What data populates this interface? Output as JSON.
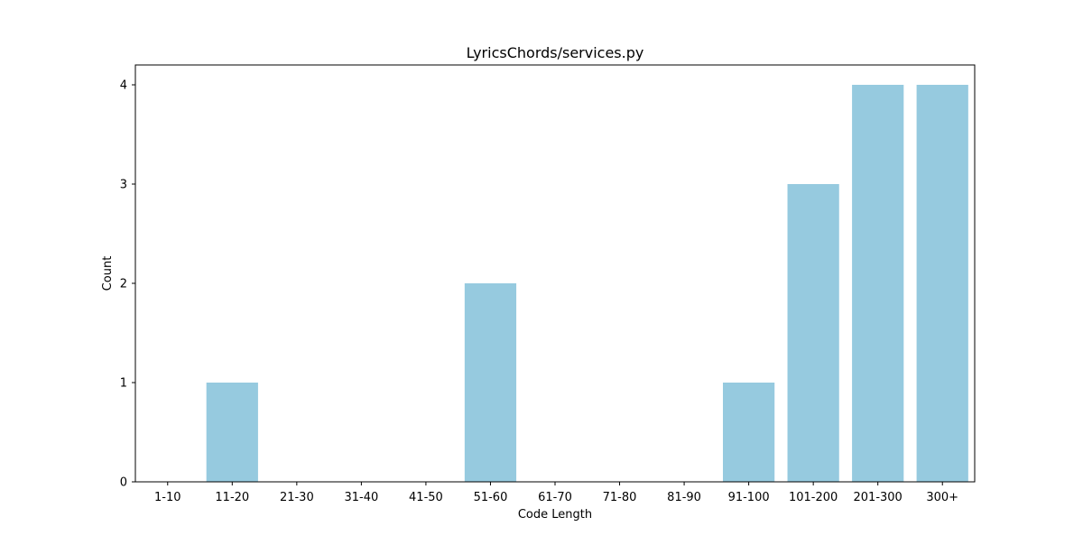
{
  "chart_data": {
    "type": "bar",
    "title": "LyricsChords/services.py",
    "xlabel": "Code Length",
    "ylabel": "Count",
    "categories": [
      "1-10",
      "11-20",
      "21-30",
      "31-40",
      "41-50",
      "51-60",
      "61-70",
      "71-80",
      "81-90",
      "91-100",
      "101-200",
      "201-300",
      "300+"
    ],
    "values": [
      0,
      1,
      0,
      0,
      0,
      2,
      0,
      0,
      0,
      1,
      3,
      4,
      4
    ],
    "yticks": [
      "0",
      "1",
      "2",
      "3",
      "4"
    ],
    "ylim": [
      0,
      4.2
    ],
    "grid": false,
    "legend": "none",
    "colors": {
      "bar": "#96cadf",
      "axis": "#000000",
      "background": "#ffffff"
    }
  }
}
